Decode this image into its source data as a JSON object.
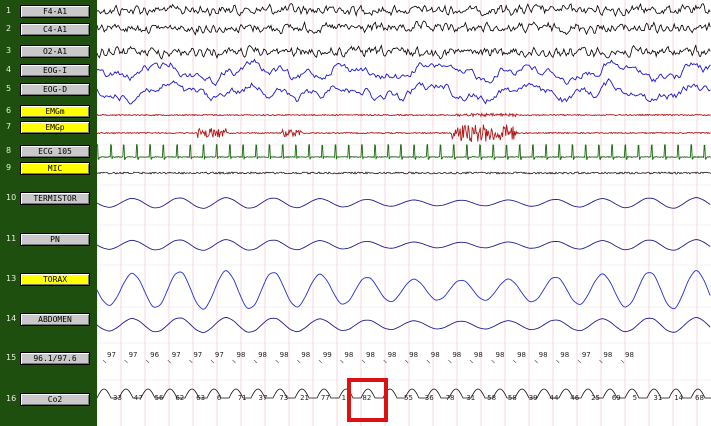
{
  "channels": [
    {
      "num": "1",
      "label": "F4-A1",
      "highlight": false,
      "color": "#000000",
      "kind": "eeg"
    },
    {
      "num": "2",
      "label": "C4-A1",
      "highlight": false,
      "color": "#000000",
      "kind": "eeg"
    },
    {
      "num": "3",
      "label": "O2-A1",
      "highlight": false,
      "color": "#000000",
      "kind": "eeg"
    },
    {
      "num": "4",
      "label": "EOG-I",
      "highlight": false,
      "color": "#1a1acc",
      "kind": "eog"
    },
    {
      "num": "5",
      "label": "EOG-D",
      "highlight": false,
      "color": "#1a1acc",
      "kind": "eog"
    },
    {
      "num": "6",
      "label": "EMGm",
      "highlight": true,
      "color": "#b01c1c",
      "kind": "emg"
    },
    {
      "num": "7",
      "label": "EMGp",
      "highlight": true,
      "color": "#b01c1c",
      "kind": "emg"
    },
    {
      "num": "8",
      "label": "ECG 105",
      "highlight": false,
      "color": "#1d6b12",
      "kind": "ecg"
    },
    {
      "num": "9",
      "label": "MIC",
      "highlight": true,
      "color": "#000000",
      "kind": "mic"
    },
    {
      "num": "10",
      "label": "TERMISTOR",
      "highlight": false,
      "color": "#20208a",
      "kind": "resp"
    },
    {
      "num": "11",
      "label": "PN",
      "highlight": false,
      "color": "#20208a",
      "kind": "resp"
    },
    {
      "num": "13",
      "label": "TORAX",
      "highlight": true,
      "color": "#2233cc",
      "kind": "resp"
    },
    {
      "num": "14",
      "label": "ABDOMEN",
      "highlight": false,
      "color": "#20208a",
      "kind": "resp"
    },
    {
      "num": "15",
      "label": "96.1/97.6",
      "highlight": false,
      "color": "#000000",
      "kind": "spo2"
    },
    {
      "num": "16",
      "label": "Co2",
      "highlight": false,
      "color": "#000000",
      "kind": "co2"
    }
  ],
  "spo2_values": [
    "97",
    "97",
    "96",
    "97",
    "97",
    "97",
    "98",
    "98",
    "98",
    "98",
    "99",
    "98",
    "98",
    "98",
    "98",
    "98",
    "98",
    "98",
    "98",
    "98",
    "98",
    "98",
    "97",
    "98",
    "98"
  ],
  "co2_values": [
    "33",
    "47",
    "56",
    "62",
    "63",
    "6",
    "71",
    "37",
    "73",
    "21",
    "77",
    "1",
    "82",
    "6",
    "55",
    "36",
    "78",
    "31",
    "58",
    "58",
    "39",
    "44",
    "46",
    "25",
    "69",
    "5",
    "31",
    "14",
    "68"
  ],
  "selection_box_color": "#dd1111",
  "grid_color": "#f2b8c8",
  "accent": {
    "sidebar_bg": "#1e4f0e",
    "button_bg": "#c9c9c9",
    "highlight_bg": "#ffff00"
  }
}
